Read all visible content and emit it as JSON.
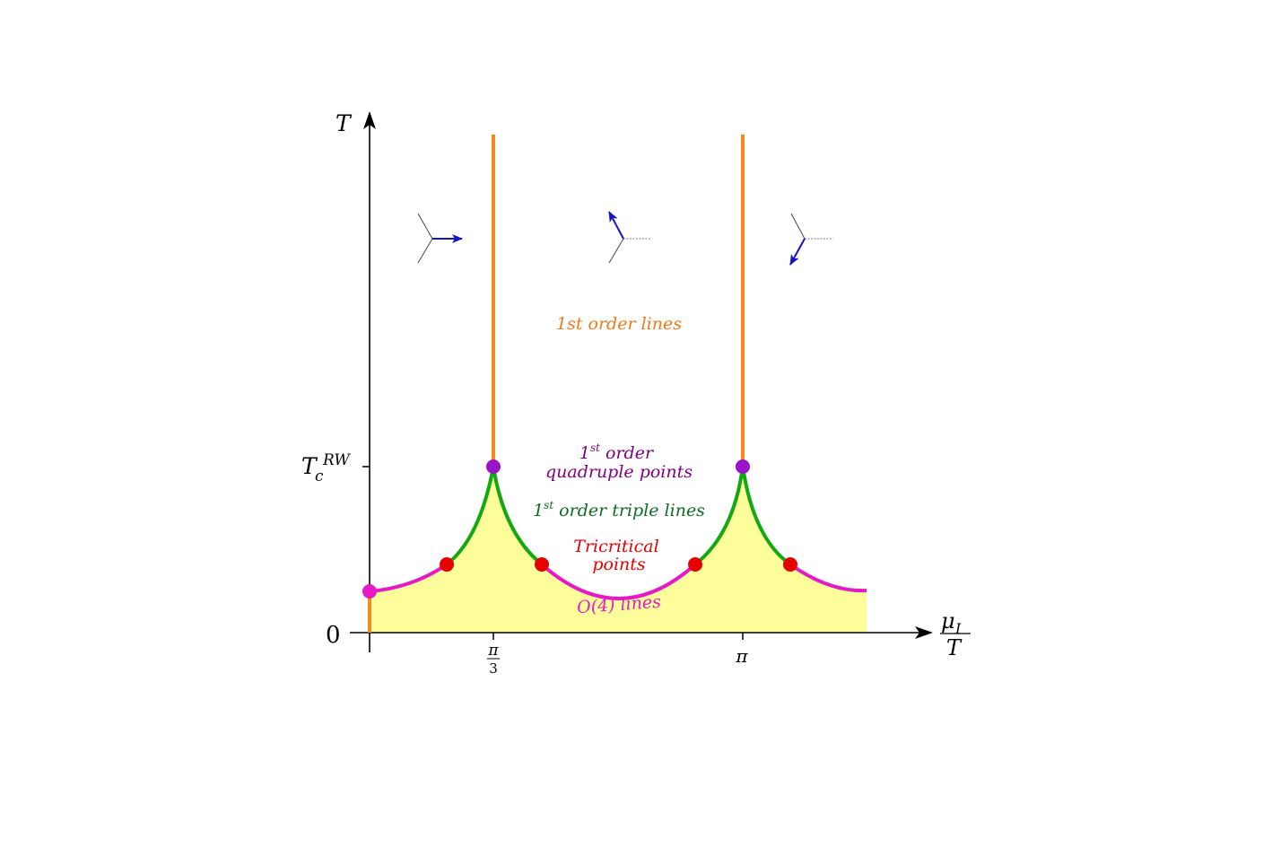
{
  "axes": {
    "y_label": "T",
    "y_tick_zero": "0",
    "y_tick_trw_main": "T",
    "y_tick_trw_sub": "c",
    "y_tick_trw_sup": "RW",
    "x_label_num_main": "μ",
    "x_label_num_sub": "I",
    "x_label_den": "T",
    "x_tick_1_num": "π",
    "x_tick_1_den": "3",
    "x_tick_2": "π"
  },
  "labels": {
    "first_order_lines": "1st order lines",
    "quadruple_line1_num": "1",
    "quadruple_line1_sup": "st",
    "quadruple_line1_rest": " order",
    "quadruple_line2": "quadruple points",
    "triple_num": "1",
    "triple_sup": "st",
    "triple_rest": " order triple lines",
    "tricritical_line1": "Tricritical",
    "tricritical_line2": "points",
    "o4_lines": "O(4) lines"
  },
  "colors": {
    "first_order": "#f28a1e",
    "triple": "#12a812",
    "o4": "#e619c8",
    "tricritical": "#e60000",
    "quadruple": "#9914c8",
    "fill": "#fdfd99",
    "first_order_text": "#f07818",
    "quadruple_text": "#800080",
    "triple_text": "#0d6b24",
    "tricritical_text": "#e60000",
    "o4_text": "#e619c8",
    "arrow": "#1414c8"
  },
  "icons": [
    "polyakov-loop-phase-0-icon",
    "polyakov-loop-phase-2pi3-icon",
    "polyakov-loop-phase-4pi3-icon"
  ]
}
